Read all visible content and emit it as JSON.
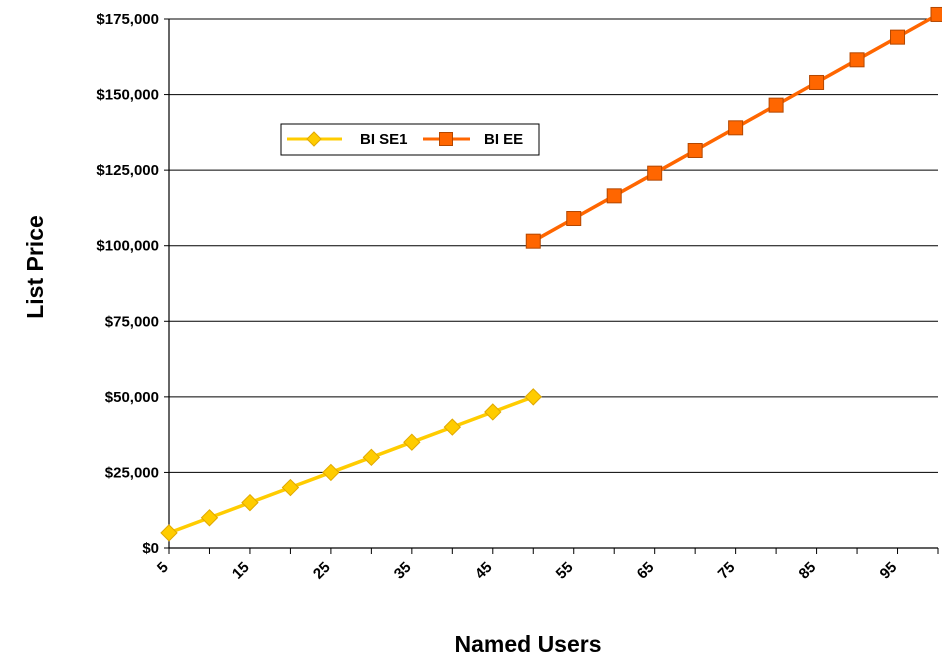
{
  "chart_data": {
    "type": "line",
    "title": "",
    "xlabel": "Named Users",
    "ylabel": "List Price",
    "x_tick_labels": [
      "5",
      "15",
      "25",
      "35",
      "45",
      "55",
      "65",
      "75",
      "85",
      "95"
    ],
    "y_tick_labels": [
      "$0",
      "$25,000",
      "$50,000",
      "$75,000",
      "$100,000",
      "$125,000",
      "$150,000",
      "$175,000"
    ],
    "ylim": [
      0,
      175000
    ],
    "x_range": [
      5,
      100
    ],
    "y_ticks": [
      0,
      25000,
      50000,
      75000,
      100000,
      125000,
      150000,
      175000
    ],
    "grid": true,
    "legend_position": "upper-left",
    "series": [
      {
        "name": "BI SE1",
        "color": "#FFCC00",
        "marker": "diamond",
        "x": [
          5,
          10,
          15,
          20,
          25,
          30,
          35,
          40,
          45,
          50
        ],
        "values": [
          5000,
          10000,
          15000,
          20000,
          25000,
          30000,
          35000,
          40000,
          45000,
          50000
        ]
      },
      {
        "name": "BI EE",
        "color": "#FF6600",
        "marker": "square",
        "x": [
          50,
          55,
          60,
          65,
          70,
          75,
          80,
          85,
          90,
          95,
          100
        ],
        "values": [
          101500,
          109000,
          116500,
          124000,
          131500,
          139000,
          146500,
          154000,
          161500,
          169000,
          176500
        ]
      }
    ]
  }
}
